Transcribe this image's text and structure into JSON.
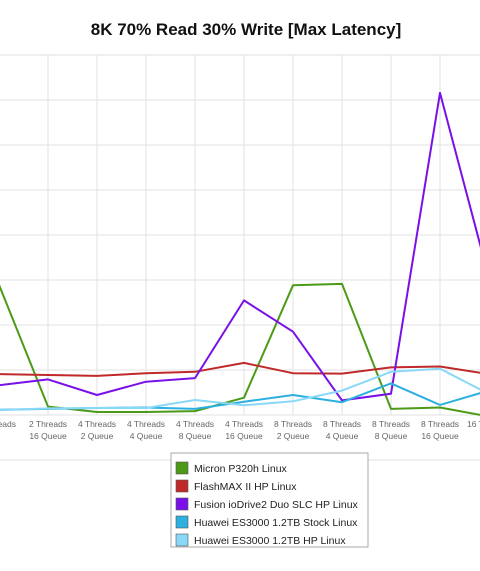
{
  "chart_data": {
    "type": "line",
    "title": "8K 70% Read 30% Write [Max Latency]",
    "xlabel": "",
    "ylabel": "",
    "grid": true,
    "legend_placement": "bottom-center",
    "categories": [
      [
        "Threads",
        ""
      ],
      [
        "2 Threads",
        "16 Queue"
      ],
      [
        "4 Threads",
        "2 Queue"
      ],
      [
        "4 Threads",
        "4 Queue"
      ],
      [
        "4 Threads",
        "8 Queue"
      ],
      [
        "4 Threads",
        "16 Queue"
      ],
      [
        "8 Threads",
        "2 Queue"
      ],
      [
        "8 Threads",
        "4 Queue"
      ],
      [
        "8 Threads",
        "8 Queue"
      ],
      [
        "8 Threads",
        "16 Queue"
      ],
      [
        "16 T",
        ""
      ]
    ],
    "ylim": [
      0,
      8
    ],
    "series": [
      {
        "name": "Micron P320h Linux",
        "color": "#4c9a17",
        "values": [
          2.85,
          0.12,
          0.0,
          0.0,
          0.02,
          0.32,
          2.84,
          2.87,
          0.07,
          0.1,
          -0.1
        ]
      },
      {
        "name": "FlashMAX II HP Linux",
        "color": "#c0292a",
        "values": [
          0.85,
          0.83,
          0.81,
          0.87,
          0.9,
          1.1,
          0.87,
          0.86,
          1.0,
          1.02,
          0.85
        ]
      },
      {
        "name": "Fusion ioDrive2 Duo SLC HP Linux",
        "color": "#7a10e8",
        "values": [
          0.6,
          0.73,
          0.38,
          0.68,
          0.76,
          2.5,
          1.8,
          0.26,
          0.41,
          7.15,
          3.0
        ]
      },
      {
        "name": "Huawei ES3000 1.2TB Stock Linux",
        "color": "#2cb0e0",
        "values": [
          0.05,
          0.07,
          0.09,
          0.1,
          0.07,
          0.23,
          0.38,
          0.22,
          0.64,
          0.16,
          0.48
        ]
      },
      {
        "name": "Huawei ES3000 1.2TB HP Linux",
        "color": "#8ad8f7",
        "values": [
          0.04,
          0.08,
          0.09,
          0.09,
          0.27,
          0.15,
          0.24,
          0.48,
          0.9,
          0.97,
          0.4
        ]
      }
    ]
  }
}
